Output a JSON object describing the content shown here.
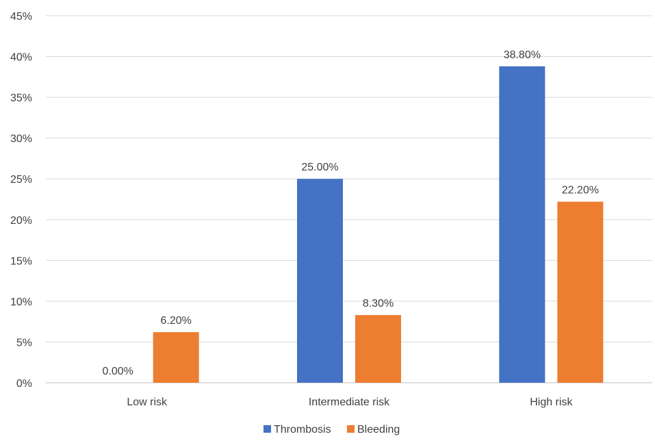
{
  "chart_data": {
    "type": "bar",
    "title": "",
    "xlabel": "",
    "ylabel": "",
    "categories": [
      "Low risk",
      "Intermediate risk",
      "High risk"
    ],
    "series": [
      {
        "name": "Thrombosis",
        "color": "#4472C4",
        "values": [
          0.0,
          25.0,
          38.8
        ],
        "labels": [
          "0.00%",
          "25.00%",
          "38.80%"
        ]
      },
      {
        "name": "Bleeding",
        "color": "#ED7D31",
        "values": [
          6.2,
          8.3,
          22.2
        ],
        "labels": [
          "6.20%",
          "8.30%",
          "22.20%"
        ]
      }
    ],
    "ylim": [
      0,
      45
    ],
    "yticks": [
      0,
      5,
      10,
      15,
      20,
      25,
      30,
      35,
      40,
      45
    ],
    "ytick_labels": [
      "0%",
      "5%",
      "10%",
      "15%",
      "20%",
      "25%",
      "30%",
      "35%",
      "40%",
      "45%"
    ],
    "grid": true,
    "legend_position": "bottom"
  }
}
